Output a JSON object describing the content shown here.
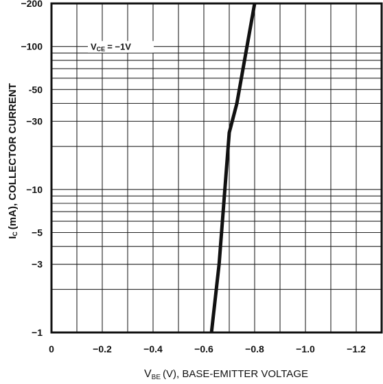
{
  "chart_data": {
    "type": "line",
    "x_axis": {
      "ticks": [
        0,
        -0.2,
        -0.4,
        -0.6,
        -0.8,
        -1.0,
        -1.2
      ],
      "tick_labels": [
        "0",
        "−0.2",
        "−0.4",
        "−0.6",
        "−0.8",
        "−1.0",
        "−1.2"
      ],
      "range": [
        0,
        -1.3
      ],
      "label_sub": "BE",
      "label": "(V), BASE-EMITTER VOLTAGE"
    },
    "y_axis": {
      "scale": "log",
      "range": [
        -1,
        -200
      ],
      "ticks": [
        -1,
        -3,
        -5,
        -10,
        -30,
        -50,
        -100,
        -200
      ],
      "tick_labels": [
        "−1",
        "−3",
        "−5",
        "−10",
        "−30",
        "-50",
        "−100",
        "−200"
      ],
      "label_sub": "C",
      "label": "(mA), COLLECTOR CURRENT"
    },
    "grid": true,
    "series": [
      {
        "x": [
          -0.63,
          -0.66,
          -0.7,
          -0.73,
          -0.8
        ],
        "y": [
          -1,
          -3,
          -25,
          -40,
          -200
        ]
      }
    ],
    "annotation": {
      "text_sub": "CE",
      "text": "= −1V"
    }
  }
}
